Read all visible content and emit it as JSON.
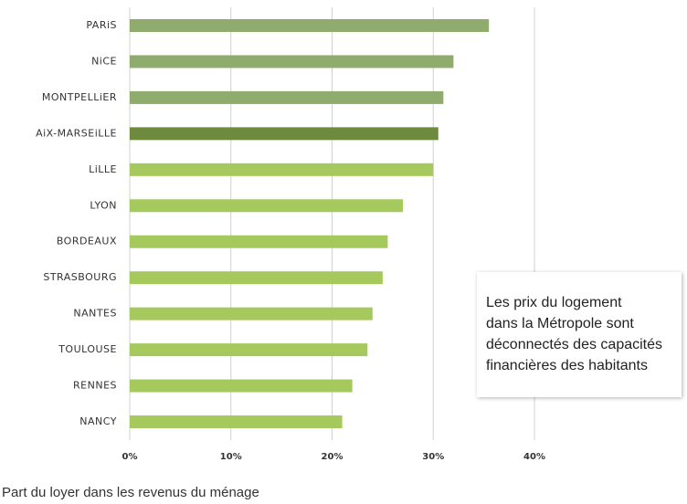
{
  "chart_data": {
    "type": "hbar",
    "xlabel": "Part du loyer dans les revenus du ménage",
    "categories": [
      "PARiS",
      "NiCE",
      "MONTPELLiER",
      "AiX-MARSEiLLE",
      "LiLLE",
      "LYON",
      "BORDEAUX",
      "STRASBOURG",
      "NANTES",
      "TOULOUSE",
      "RENNES",
      "NANCY"
    ],
    "values": [
      35.5,
      32,
      31,
      30.5,
      30,
      27,
      25.5,
      25,
      24,
      23.5,
      22,
      21
    ],
    "colors": [
      "#8fac6e",
      "#8fac6e",
      "#8fac6e",
      "#6e8b3d",
      "#a6c95e",
      "#a6c95e",
      "#a6c95e",
      "#a6c95e",
      "#a6c95e",
      "#a6c95e",
      "#a6c95e",
      "#a6c95e"
    ],
    "xlim": [
      0,
      40
    ],
    "xticks": [
      {
        "value": 0,
        "label": "0%"
      },
      {
        "value": 10,
        "label": "10%"
      },
      {
        "value": 20,
        "label": "20%"
      },
      {
        "value": 30,
        "label": "30%"
      },
      {
        "value": 40,
        "label": "40%"
      }
    ],
    "grid": true,
    "annotation": [
      "Les prix du logement",
      "dans la Métropole sont",
      "déconnectés des capacités",
      "financières des habitants"
    ]
  }
}
